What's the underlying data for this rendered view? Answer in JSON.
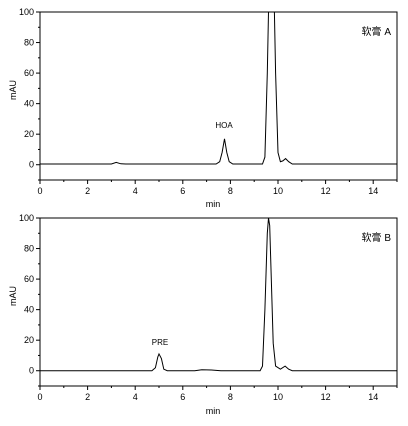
{
  "chart_data": [
    {
      "type": "line",
      "title": "软膏 A",
      "xlabel": "min",
      "ylabel": "mAU",
      "xlim": [
        0,
        15
      ],
      "ylim": [
        -10,
        100
      ],
      "xticks": [
        "0",
        "2",
        "4",
        "6",
        "8",
        "10",
        "12",
        "14"
      ],
      "yticks": [
        "0",
        "20",
        "40",
        "60",
        "80",
        "100"
      ],
      "grid": false,
      "annotations": [
        {
          "text": "HOA",
          "x": 7.75,
          "y": 17
        }
      ],
      "series": [
        {
          "values": [
            [
              0,
              0.5
            ],
            [
              3.0,
              0.5
            ],
            [
              3.2,
              1.5
            ],
            [
              3.4,
              0.6
            ],
            [
              3.6,
              0.5
            ],
            [
              7.4,
              0.5
            ],
            [
              7.55,
              2
            ],
            [
              7.65,
              8
            ],
            [
              7.75,
              17
            ],
            [
              7.85,
              8
            ],
            [
              7.95,
              2
            ],
            [
              8.1,
              0.5
            ],
            [
              9.35,
              0.5
            ],
            [
              9.45,
              5
            ],
            [
              9.55,
              60
            ],
            [
              9.6,
              100
            ],
            [
              9.85,
              100
            ],
            [
              9.9,
              60
            ],
            [
              10.0,
              8
            ],
            [
              10.1,
              2
            ],
            [
              10.2,
              2.5
            ],
            [
              10.32,
              4
            ],
            [
              10.45,
              2
            ],
            [
              10.6,
              0.5
            ],
            [
              15,
              0.5
            ]
          ]
        }
      ]
    },
    {
      "type": "line",
      "title": "软膏 B",
      "xlabel": "min",
      "ylabel": "mAU",
      "xlim": [
        0,
        15
      ],
      "ylim": [
        -10,
        100
      ],
      "xticks": [
        "0",
        "2",
        "4",
        "6",
        "8",
        "10",
        "12",
        "14"
      ],
      "yticks": [
        "0",
        "20",
        "40",
        "60",
        "80",
        "100"
      ],
      "grid": false,
      "annotations": [
        {
          "text": "PRE",
          "x": 5.0,
          "y": 11
        }
      ],
      "series": [
        {
          "values": [
            [
              0,
              0
            ],
            [
              4.7,
              0
            ],
            [
              4.85,
              2
            ],
            [
              4.95,
              9
            ],
            [
              5.0,
              11
            ],
            [
              5.1,
              8
            ],
            [
              5.2,
              1
            ],
            [
              5.35,
              0
            ],
            [
              6.5,
              0
            ],
            [
              6.8,
              0.6
            ],
            [
              7.2,
              0.5
            ],
            [
              7.6,
              0
            ],
            [
              9.25,
              0
            ],
            [
              9.35,
              3
            ],
            [
              9.45,
              40
            ],
            [
              9.55,
              90
            ],
            [
              9.6,
              100
            ],
            [
              9.65,
              95
            ],
            [
              9.72,
              60
            ],
            [
              9.8,
              18
            ],
            [
              9.9,
              3
            ],
            [
              10.1,
              1
            ],
            [
              10.3,
              3
            ],
            [
              10.45,
              1
            ],
            [
              10.6,
              0
            ],
            [
              15,
              0
            ]
          ]
        }
      ]
    }
  ]
}
